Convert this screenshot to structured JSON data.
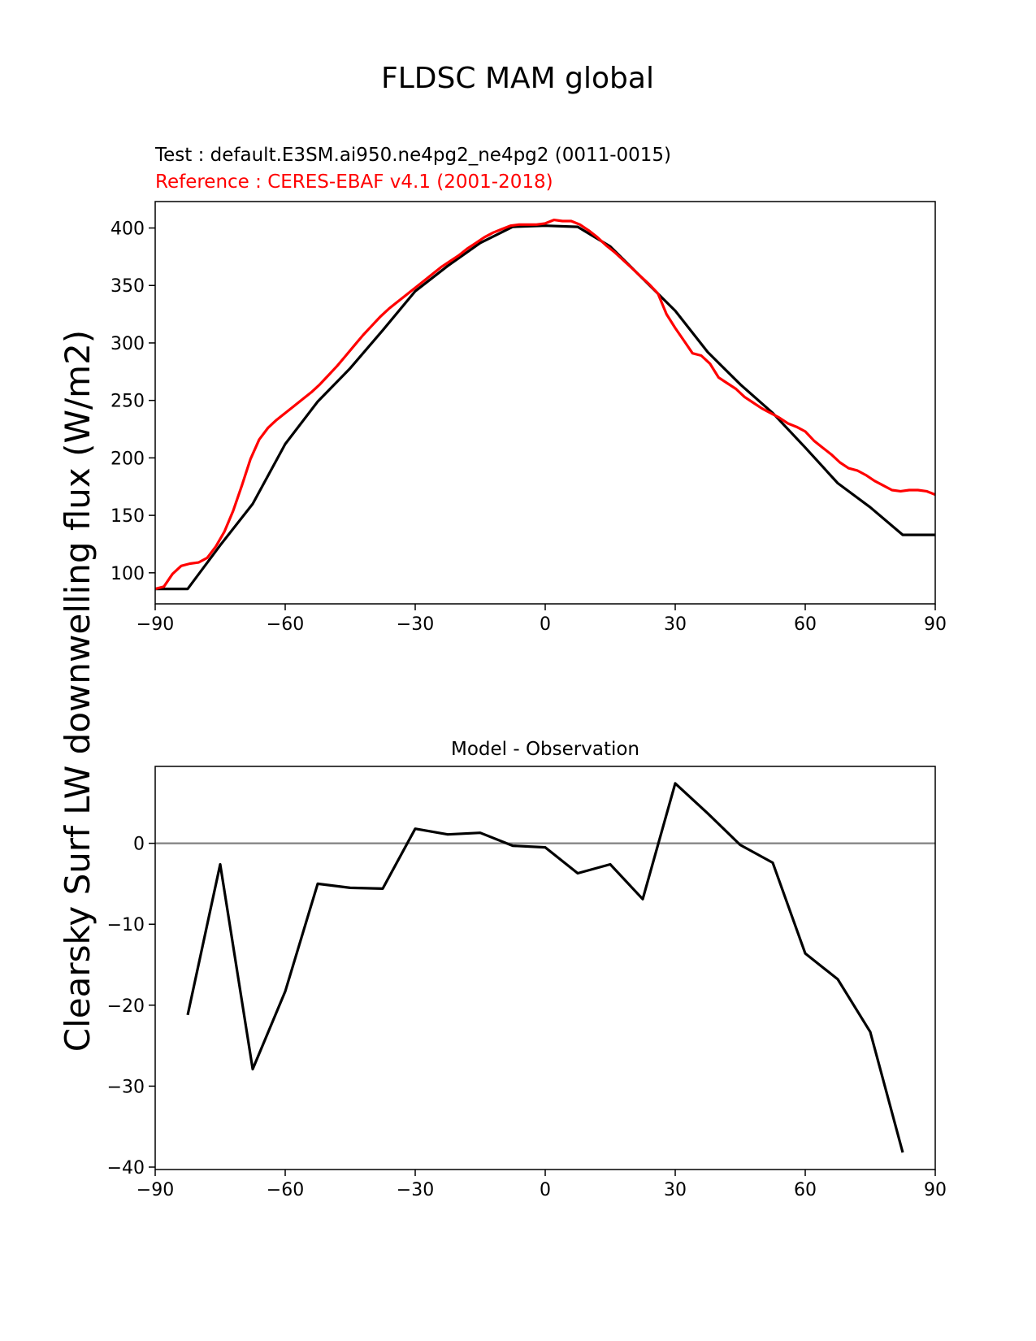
{
  "figure": {
    "suptitle": "FLDSC MAM global",
    "test_label": "Test : default.E3SM.ai950.ne4pg2_ne4pg2 (0011-0015)",
    "reference_label": "Reference : CERES-EBAF v4.1 (2001-2018)",
    "colors": {
      "test": "#000000",
      "reference": "#ff0000",
      "zero_line": "#808080"
    }
  },
  "chart_data": [
    {
      "type": "line",
      "title": "",
      "xlabel": "",
      "ylabel": "Clearsky Surf LW downwelling flux (W/m2)",
      "xlim": [
        -90,
        90
      ],
      "ylim": [
        73,
        423
      ],
      "xticks": [
        -90,
        -60,
        -30,
        0,
        30,
        60,
        90
      ],
      "xtick_labels": [
        "−90",
        "−60",
        "−30",
        "0",
        "30",
        "60",
        "90"
      ],
      "yticks": [
        100,
        150,
        200,
        250,
        300,
        350,
        400
      ],
      "ytick_labels": [
        "100",
        "150",
        "200",
        "250",
        "300",
        "350",
        "400"
      ],
      "series": [
        {
          "name": "Test",
          "color": "#000000",
          "x": [
            -90,
            -82.5,
            -75,
            -67.5,
            -60,
            -52.5,
            -45,
            -37.5,
            -30,
            -22.5,
            -15,
            -7.5,
            0,
            7.5,
            15,
            22.5,
            30,
            37.5,
            45,
            52.5,
            60,
            67.5,
            75,
            82.5,
            90
          ],
          "y": [
            86,
            86,
            124,
            160,
            212,
            249,
            278,
            311,
            345,
            367,
            387,
            401,
            402,
            401,
            384,
            356,
            328,
            292,
            264,
            239,
            209,
            178,
            157,
            133,
            133
          ]
        },
        {
          "name": "Reference",
          "color": "#ff0000",
          "x": [
            -90,
            -88,
            -86,
            -84,
            -82,
            -80,
            -78,
            -76,
            -74,
            -72,
            -70,
            -68,
            -66,
            -64,
            -62,
            -60,
            -58,
            -56,
            -54,
            -52,
            -50,
            -48,
            -46,
            -44,
            -42,
            -40,
            -38,
            -36,
            -34,
            -32,
            -30,
            -28,
            -26,
            -24,
            -22,
            -20,
            -18,
            -16,
            -14,
            -12,
            -10,
            -8,
            -6,
            -4,
            -2,
            0,
            2,
            4,
            6,
            8,
            10,
            12,
            14,
            16,
            18,
            20,
            22,
            24,
            26,
            28,
            30,
            32,
            34,
            36,
            38,
            40,
            42,
            44,
            46,
            48,
            50,
            52,
            54,
            56,
            58,
            60,
            62,
            64,
            66,
            68,
            70,
            72,
            74,
            76,
            78,
            80,
            82,
            84,
            86,
            88,
            90
          ],
          "y": [
            86,
            88,
            99,
            106,
            108,
            109,
            113,
            123,
            136,
            154,
            176,
            199,
            216,
            226,
            233,
            239,
            245,
            251,
            257,
            264,
            272,
            280,
            289,
            298,
            307,
            315,
            323,
            330,
            336,
            342,
            348,
            354,
            360,
            366,
            371,
            376,
            382,
            387,
            392,
            396,
            399,
            402,
            403,
            403,
            403,
            404,
            407,
            406,
            406,
            403,
            398,
            392,
            385,
            379,
            372,
            365,
            358,
            351,
            343,
            325,
            313,
            302,
            291,
            289,
            282,
            270,
            265,
            260,
            253,
            248,
            243,
            239,
            235,
            230,
            227,
            223,
            215,
            209,
            203,
            196,
            191,
            189,
            185,
            180,
            176,
            172,
            171,
            172,
            172,
            171,
            168
          ]
        }
      ]
    },
    {
      "type": "line",
      "title": "Model - Observation",
      "xlabel": "",
      "ylabel": "",
      "xlim": [
        -90,
        90
      ],
      "ylim": [
        -40.3,
        9.5
      ],
      "xticks": [
        -90,
        -60,
        -30,
        0,
        30,
        60,
        90
      ],
      "xtick_labels": [
        "−90",
        "−60",
        "−30",
        "0",
        "30",
        "60",
        "90"
      ],
      "yticks": [
        -40,
        -30,
        -20,
        -10,
        0
      ],
      "ytick_labels": [
        "−40",
        "−30",
        "−20",
        "−10",
        "0"
      ],
      "reference_line": {
        "y": 0,
        "color": "#808080"
      },
      "series": [
        {
          "name": "Model - Observation",
          "color": "#000000",
          "x": [
            -82.5,
            -75,
            -67.5,
            -60,
            -52.5,
            -45,
            -37.5,
            -30,
            -22.5,
            -15,
            -7.5,
            0,
            7.5,
            15,
            22.5,
            30,
            37.5,
            45,
            52.5,
            60,
            67.5,
            75,
            82.5
          ],
          "y": [
            -21.2,
            -2.6,
            -27.9,
            -18.3,
            -5.0,
            -5.5,
            -5.6,
            1.8,
            1.1,
            1.3,
            -0.3,
            -0.5,
            -3.7,
            -2.6,
            -6.9,
            7.4,
            3.7,
            -0.2,
            -2.4,
            -13.6,
            -16.8,
            -23.3,
            -38.2
          ]
        }
      ]
    }
  ]
}
